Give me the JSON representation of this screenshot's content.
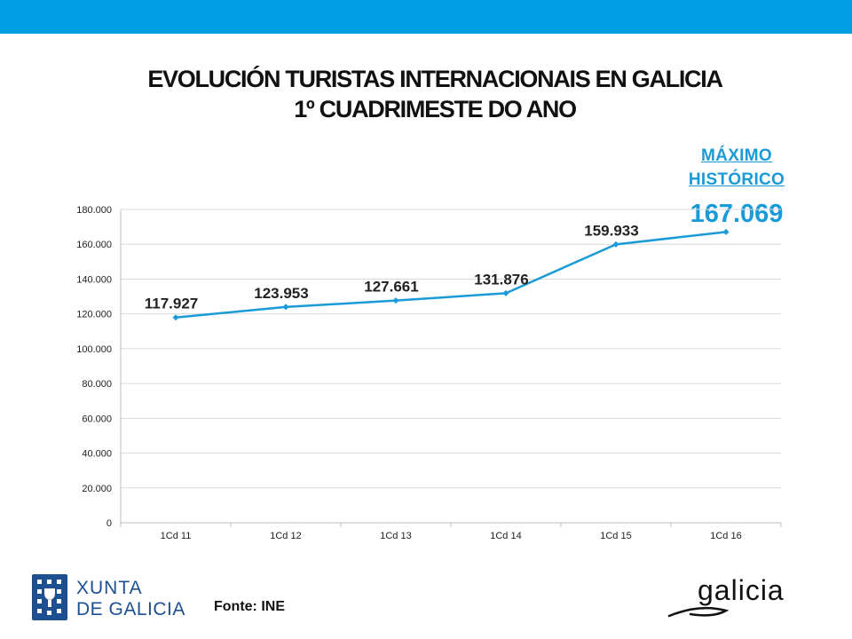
{
  "header": {
    "bar_color": "#009fe3"
  },
  "title": {
    "line1": "EVOLUCIÓN TURISTAS INTERNACIONAIS EN GALICIA",
    "line2": "1º CUADRIMESTE DO ANO"
  },
  "highlight": {
    "label_line1": "MÁXIMO",
    "label_line2": "HISTÓRICO",
    "value": "167.069",
    "color": "#1a9ad6"
  },
  "chart_data": {
    "type": "line",
    "categories": [
      "1Cd 11",
      "1Cd 12",
      "1Cd 13",
      "1Cd 14",
      "1Cd 15",
      "1Cd 16"
    ],
    "series": [
      {
        "values": [
          117927,
          123953,
          127661,
          131876,
          159933,
          167069
        ],
        "data_labels": [
          "117.927",
          "123.953",
          "127.661",
          "131.876",
          "159.933",
          ""
        ],
        "color": "#1a9ad6"
      }
    ],
    "y_ticks": [
      0,
      20000,
      40000,
      60000,
      80000,
      100000,
      120000,
      140000,
      160000,
      180000
    ],
    "y_tick_labels": [
      "0",
      "20.000",
      "40.000",
      "60.000",
      "80.000",
      "100.000",
      "120.000",
      "140.000",
      "160.000",
      "180.000"
    ],
    "ylim": [
      0,
      180000
    ],
    "grid": true,
    "title": "",
    "xlabel": "",
    "ylabel": ""
  },
  "footer": {
    "source": "Fonte: INE",
    "left_logo_text": [
      "XUNTA",
      "DE GALICIA"
    ],
    "right_logo_text": "galicia",
    "logo_color": "#1d4f91"
  }
}
